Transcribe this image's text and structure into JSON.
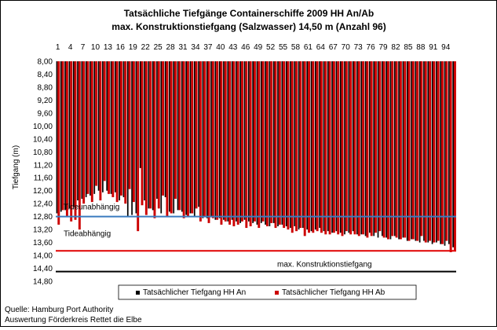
{
  "chart_data": {
    "type": "bar",
    "title": "Tatsächliche Tiefgänge Containerschiffe 2009 HH An/Ab",
    "subtitle": "max. Konstruktionstiefgang (Salzwasser) 14,50 m (Anzahl 96)",
    "ylabel": "Tiefgang (m)",
    "ylim": [
      8.0,
      14.8
    ],
    "y_inverted": true,
    "grid": false,
    "legend_position": "bottom",
    "x_tick_labels": [
      "1",
      "4",
      "7",
      "10",
      "13",
      "16",
      "19",
      "22",
      "25",
      "28",
      "31",
      "34",
      "37",
      "40",
      "43",
      "46",
      "49",
      "52",
      "55",
      "58",
      "61",
      "64",
      "67",
      "70",
      "73",
      "76",
      "79",
      "82",
      "85",
      "88",
      "91",
      "94"
    ],
    "y_tick_labels": [
      "8,00",
      "8,40",
      "8,80",
      "9,20",
      "9,60",
      "10,00",
      "10,40",
      "10,80",
      "11,20",
      "11,60",
      "12,00",
      "12,40",
      "12,80",
      "13,20",
      "13,60",
      "14,00",
      "14,40",
      "14,80"
    ],
    "series": [
      {
        "name": "Tatsächlicher Tiefgang HH An",
        "color": "#000000",
        "values": [
          12.7,
          12.65,
          12.6,
          12.55,
          12.5,
          12.3,
          12.25,
          12.2,
          12.15,
          12.1,
          12.0,
          12.05,
          12.0,
          12.1,
          12.05,
          12.3,
          12.2,
          12.8,
          12.75,
          12.7,
          11.3,
          12.3,
          12.55,
          12.6,
          12.25,
          12.7,
          12.2,
          12.65,
          12.7,
          12.6,
          12.65,
          12.75,
          12.7,
          12.8,
          12.5,
          12.85,
          12.85,
          12.8,
          12.9,
          12.85,
          12.9,
          12.95,
          12.9,
          12.95,
          13.0,
          12.9,
          12.95,
          13.0,
          13.05,
          13.0,
          13.05,
          13.1,
          13.0,
          13.1,
          13.05,
          13.1,
          13.15,
          13.1,
          13.2,
          13.15,
          13.2,
          13.25,
          13.2,
          13.15,
          13.25,
          13.25,
          13.3,
          13.25,
          13.3,
          13.35,
          13.3,
          13.25,
          13.35,
          13.35,
          13.4,
          13.3,
          13.4,
          13.45,
          13.4,
          13.45,
          13.5,
          13.4,
          13.5,
          13.45,
          13.55,
          13.5,
          13.55,
          13.6,
          13.55,
          13.6,
          13.65,
          13.6,
          13.65,
          13.7,
          13.65,
          13.75
        ],
        "values_note_precision": "estimated"
      },
      {
        "name": "Tatsächlicher Tiefgang HH Ab",
        "color": "#cc0000",
        "values": [
          13.05,
          12.6,
          12.8,
          12.95,
          12.9,
          13.2,
          12.4,
          12.1,
          12.35,
          11.85,
          12.3,
          11.7,
          12.1,
          12.2,
          12.35,
          12.15,
          12.4,
          11.95,
          12.35,
          13.25,
          12.45,
          12.75,
          12.55,
          12.85,
          12.55,
          12.15,
          12.8,
          12.7,
          12.25,
          12.6,
          12.85,
          12.8,
          12.7,
          12.55,
          12.95,
          12.8,
          13.0,
          12.85,
          12.9,
          13.05,
          12.95,
          13.05,
          13.1,
          13.05,
          12.95,
          13.15,
          13.1,
          12.95,
          13.15,
          12.95,
          13.1,
          13.0,
          13.15,
          13.05,
          13.15,
          13.2,
          13.3,
          13.25,
          13.15,
          13.4,
          13.3,
          13.3,
          13.25,
          13.3,
          13.35,
          13.35,
          13.3,
          13.35,
          13.4,
          13.25,
          13.35,
          13.35,
          13.4,
          13.35,
          13.45,
          13.4,
          13.3,
          13.25,
          13.45,
          13.5,
          13.4,
          13.45,
          13.5,
          13.45,
          13.55,
          13.5,
          13.55,
          13.4,
          13.6,
          13.55,
          13.6,
          13.55,
          13.65,
          13.55,
          13.9,
          13.85
        ]
      }
    ],
    "reference_lines": [
      {
        "label": "Tideunabhängig",
        "value": 12.8,
        "color": "#3a7bbf"
      },
      {
        "label": "Tideabhängig",
        "value": 13.86,
        "color": "#e00000"
      },
      {
        "label": "max. Konstruktionstiefgang",
        "value": 14.5,
        "color": "#000000"
      }
    ]
  },
  "source": {
    "line1": "Quelle: Hamburg Port Authority",
    "line2": "Auswertung Förderkreis Rettet die Elbe"
  }
}
